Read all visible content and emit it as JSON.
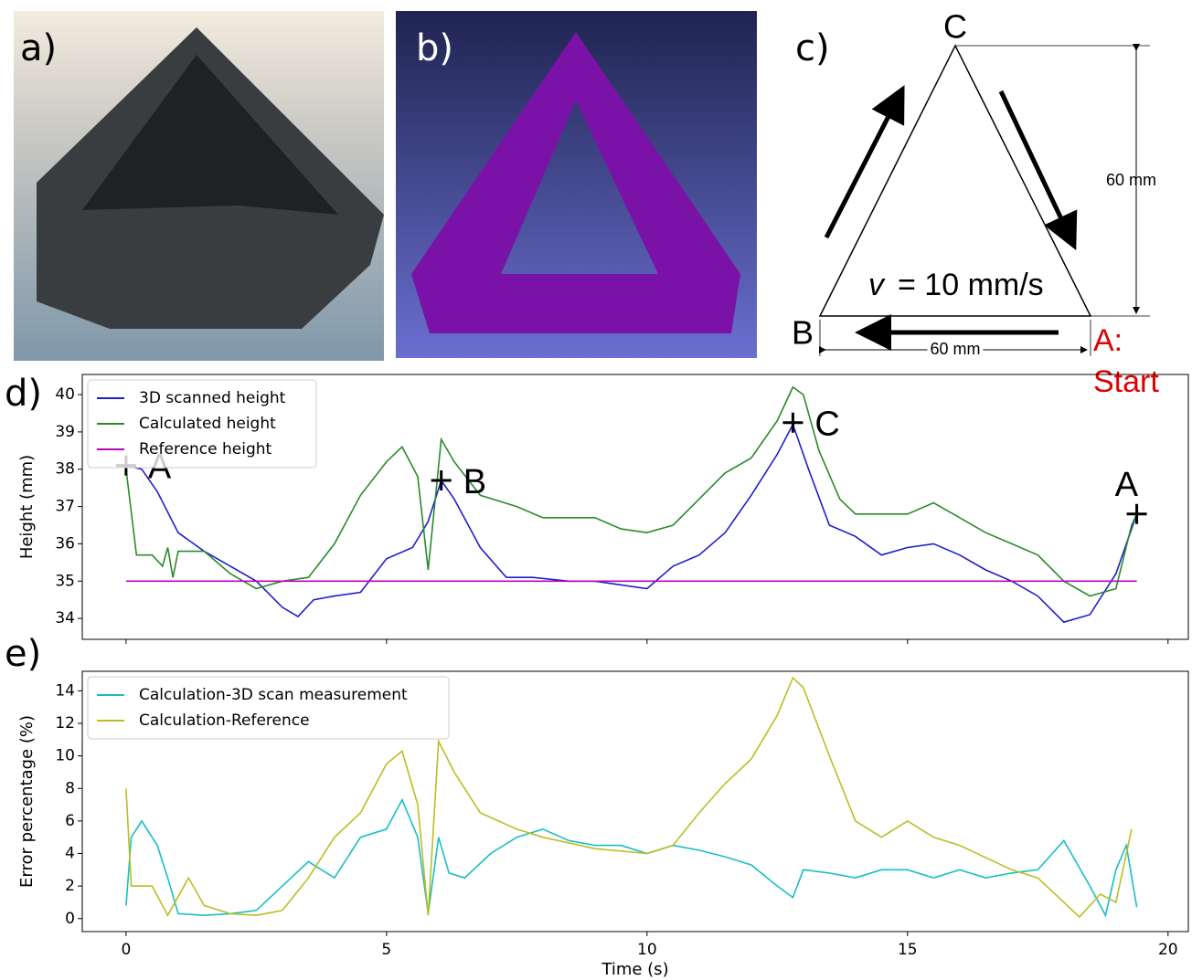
{
  "panels": {
    "a": "a)",
    "b": "b)",
    "c": "c)",
    "d": "d)",
    "e": "e)"
  },
  "diagram": {
    "vertex_c": "C",
    "vertex_b": "B",
    "start_1": "A:",
    "start_2": "Start",
    "height_dim": "60 mm",
    "base_dim": "60 mm",
    "speed_symbol": "v",
    "speed_text": "= 10 mm/s"
  },
  "chart_data": [
    {
      "type": "line",
      "ylabel": "Height (mm)",
      "xlim": [
        -0.84,
        20.39
      ],
      "ylim": [
        33.44,
        40.54
      ],
      "xticks": [
        0,
        5,
        10,
        15,
        20
      ],
      "yticks": [
        34,
        35,
        36,
        37,
        38,
        39,
        40
      ],
      "xtick_labels": false,
      "legend": "upper left",
      "series": [
        {
          "name": "3D scanned height",
          "color": "#1f1fcc",
          "x": [
            0,
            0.3,
            0.6,
            1,
            1.5,
            2,
            2.5,
            3,
            3.3,
            3.6,
            4,
            4.5,
            5,
            5.5,
            5.8,
            6.05,
            6.3,
            6.8,
            7.3,
            7.8,
            8.5,
            9,
            9.5,
            10,
            10.5,
            11,
            11.5,
            12,
            12.5,
            12.8,
            13.1,
            13.5,
            14,
            14.5,
            15,
            15.5,
            16,
            16.5,
            17,
            17.5,
            18,
            18.5,
            19,
            19.4
          ],
          "values": [
            38.1,
            38.0,
            37.4,
            36.3,
            35.8,
            35.4,
            35.0,
            34.3,
            34.05,
            34.5,
            34.6,
            34.7,
            35.6,
            35.9,
            36.6,
            37.7,
            37.2,
            35.9,
            35.1,
            35.1,
            35.0,
            35.0,
            34.9,
            34.8,
            35.4,
            35.7,
            36.3,
            37.3,
            38.4,
            39.2,
            38.0,
            36.5,
            36.2,
            35.7,
            35.9,
            36.0,
            35.7,
            35.3,
            35.0,
            34.6,
            33.9,
            34.1,
            35.2,
            36.8
          ]
        },
        {
          "name": "Calculated height",
          "color": "#2a8a2a",
          "x": [
            0,
            0.2,
            0.5,
            0.7,
            0.8,
            0.9,
            1,
            1.5,
            2,
            2.5,
            3,
            3.5,
            4,
            4.5,
            5,
            5.3,
            5.6,
            5.8,
            6.05,
            6.3,
            6.8,
            7.5,
            8,
            9,
            9.5,
            10,
            10.5,
            11,
            11.5,
            12,
            12.5,
            12.8,
            13,
            13.3,
            13.7,
            14,
            15,
            15.5,
            16,
            16.5,
            17,
            17.5,
            18,
            18.5,
            19,
            19.3,
            19.4
          ],
          "values": [
            38.0,
            35.7,
            35.7,
            35.4,
            35.9,
            35.1,
            35.8,
            35.8,
            35.2,
            34.8,
            35.0,
            35.1,
            36.0,
            37.3,
            38.2,
            38.6,
            37.8,
            35.3,
            38.8,
            38.2,
            37.3,
            37.0,
            36.7,
            36.7,
            36.4,
            36.3,
            36.5,
            37.2,
            37.9,
            38.3,
            39.3,
            40.2,
            40.0,
            38.5,
            37.2,
            36.8,
            36.8,
            37.1,
            36.7,
            36.3,
            36.0,
            35.7,
            35.0,
            34.6,
            34.8,
            36.5,
            36.8
          ]
        },
        {
          "name": "Reference height",
          "color": "#bf00bf",
          "x": [
            0,
            19.4
          ],
          "values": [
            35,
            35
          ]
        }
      ],
      "annotations": [
        {
          "text": "A",
          "x": 0,
          "y": 38.1
        },
        {
          "text": "B",
          "x": 6.05,
          "y": 37.7
        },
        {
          "text": "C",
          "x": 12.8,
          "y": 39.25
        },
        {
          "text": "A",
          "x": 19.4,
          "y": 36.8
        }
      ]
    },
    {
      "type": "line",
      "xlabel": "Time (s)",
      "ylabel": "Error percentage (%)",
      "xlim": [
        -0.84,
        20.39
      ],
      "ylim": [
        -0.8,
        15.2
      ],
      "xticks": [
        0,
        5,
        10,
        15,
        20
      ],
      "yticks": [
        0,
        2,
        4,
        6,
        8,
        10,
        12,
        14
      ],
      "xtick_labels": true,
      "legend": "upper left",
      "series": [
        {
          "name": "Calculation-3D scan measurement",
          "color": "#17bfc4",
          "x": [
            0,
            0.1,
            0.3,
            0.6,
            0.8,
            1,
            1.5,
            2,
            2.5,
            3,
            3.5,
            4,
            4.5,
            5,
            5.3,
            5.6,
            5.8,
            6,
            6.2,
            6.5,
            7,
            7.5,
            8,
            8.5,
            9,
            9.5,
            10,
            10.5,
            11,
            11.5,
            12,
            12.5,
            12.8,
            13,
            13.5,
            14,
            14.5,
            15,
            15.5,
            16,
            16.5,
            17,
            17.5,
            18,
            18.5,
            18.8,
            19,
            19.2,
            19.4
          ],
          "values": [
            0.8,
            5.0,
            6.0,
            4.5,
            2.5,
            0.3,
            0.2,
            0.3,
            0.5,
            2.0,
            3.5,
            2.5,
            5.0,
            5.5,
            7.3,
            5.0,
            0.3,
            5.0,
            2.8,
            2.5,
            4.0,
            5.0,
            5.5,
            4.8,
            4.5,
            4.5,
            4.0,
            4.5,
            4.2,
            3.8,
            3.3,
            2.0,
            1.3,
            3.0,
            2.8,
            2.5,
            3.0,
            3.0,
            2.5,
            3.0,
            2.5,
            2.8,
            3.0,
            4.8,
            2.0,
            0.2,
            3.0,
            4.5,
            0.7
          ]
        },
        {
          "name": "Calculation-Reference",
          "color": "#bcbd22",
          "x": [
            0,
            0.1,
            0.5,
            0.8,
            1.2,
            1.5,
            2,
            2.5,
            3,
            3.5,
            4,
            4.5,
            5,
            5.3,
            5.6,
            5.8,
            6,
            6.3,
            6.8,
            7.5,
            8,
            9,
            10,
            10.5,
            11,
            11.5,
            12,
            12.5,
            12.8,
            13,
            13.5,
            14,
            14.5,
            15,
            15.5,
            16,
            17,
            17.5,
            18,
            18.3,
            18.7,
            19,
            19.3
          ],
          "values": [
            8.0,
            2.0,
            2.0,
            0.2,
            2.5,
            0.8,
            0.3,
            0.2,
            0.5,
            2.5,
            5.0,
            6.5,
            9.5,
            10.3,
            7.0,
            0.2,
            10.9,
            9.0,
            6.5,
            5.5,
            5.0,
            4.3,
            4.0,
            4.5,
            6.5,
            8.3,
            9.8,
            12.5,
            14.8,
            14.2,
            10.0,
            6.0,
            5.0,
            6.0,
            5.0,
            4.5,
            3.0,
            2.5,
            1.0,
            0.1,
            1.5,
            1.0,
            5.5
          ]
        }
      ]
    }
  ]
}
